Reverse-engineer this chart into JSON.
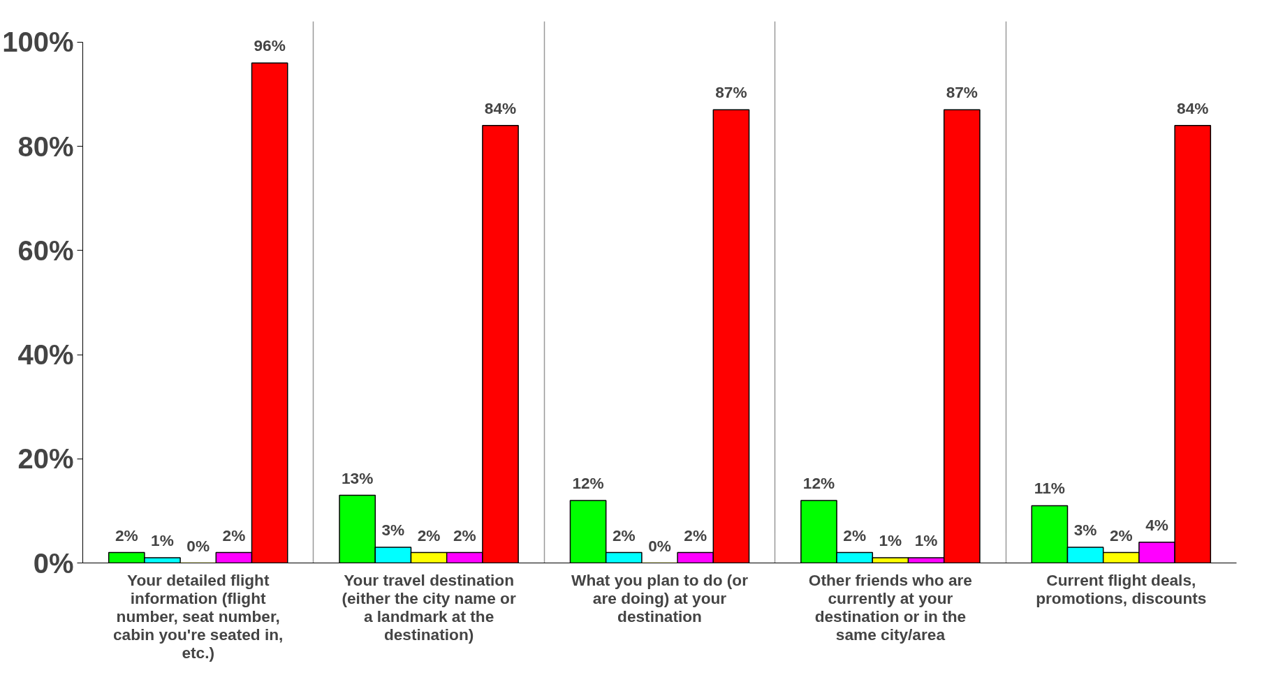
{
  "chart_data": {
    "type": "bar",
    "categories": [
      "Your detailed flight information (flight number, seat number, cabin you're seated in, etc.)",
      "Your travel destination (either the city name or a landmark at the destination)",
      "What you plan to do (or are doing) at your destination",
      "Other friends who are currently at your destination or in the same city/area",
      "Current flight deals, promotions, discounts"
    ],
    "series": [
      {
        "color": "#00ff00",
        "values": [
          2,
          13,
          12,
          12,
          11
        ],
        "value_labels": [
          "2%",
          "13%",
          "12%",
          "12%",
          "11%"
        ]
      },
      {
        "color": "#00ffff",
        "values": [
          1,
          3,
          2,
          2,
          3
        ],
        "value_labels": [
          "1%",
          "3%",
          "2%",
          "2%",
          "3%"
        ]
      },
      {
        "color": "#ffff00",
        "values": [
          0,
          2,
          0,
          1,
          2
        ],
        "value_labels": [
          "0%",
          "2%",
          "0%",
          "1%",
          "2%"
        ]
      },
      {
        "color": "#ff00ff",
        "values": [
          2,
          2,
          2,
          1,
          4
        ],
        "value_labels": [
          "2%",
          "2%",
          "2%",
          "1%",
          "4%"
        ]
      },
      {
        "color": "#ff0000",
        "values": [
          96,
          84,
          87,
          87,
          84
        ],
        "value_labels": [
          "96%",
          "84%",
          "87%",
          "87%",
          "84%"
        ]
      }
    ],
    "ylim": [
      0,
      100
    ],
    "yticks": [
      {
        "value": 0,
        "label": "0%"
      },
      {
        "value": 20,
        "label": "20%"
      },
      {
        "value": 40,
        "label": "40%"
      },
      {
        "value": 60,
        "label": "60%"
      },
      {
        "value": 80,
        "label": "80%"
      },
      {
        "value": 100,
        "label": "100%"
      }
    ],
    "grid": "x"
  }
}
